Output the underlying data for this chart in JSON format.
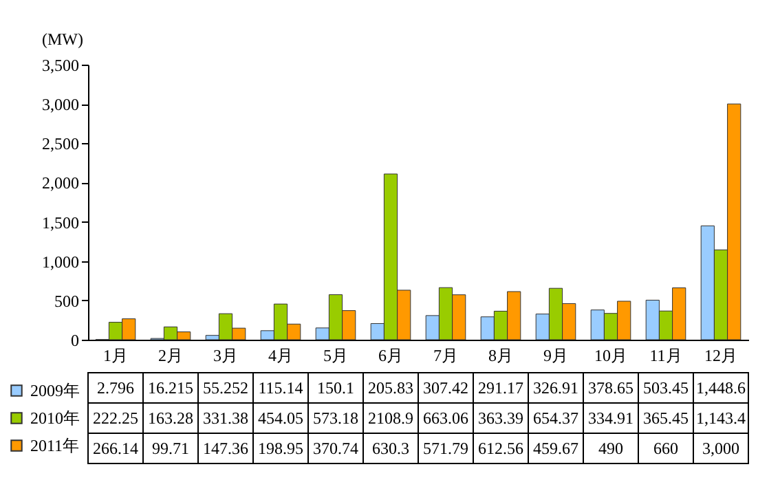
{
  "chart_data": {
    "type": "bar",
    "ylabel": "(MW)",
    "categories": [
      "1月",
      "2月",
      "3月",
      "4月",
      "5月",
      "6月",
      "7月",
      "8月",
      "9月",
      "10月",
      "11月",
      "12月"
    ],
    "series": [
      {
        "name": "2009年",
        "color": "#99ccff",
        "values": [
          2.796,
          16.215,
          55.252,
          115.14,
          150.1,
          205.83,
          307.42,
          291.17,
          326.91,
          378.65,
          503.45,
          1448.6
        ],
        "value_labels": [
          "2.796",
          "16.215",
          "55.252",
          "115.14",
          "150.1",
          "205.83",
          "307.42",
          "291.17",
          "326.91",
          "378.65",
          "503.45",
          "1,448.6"
        ]
      },
      {
        "name": "2010年",
        "color": "#99cc00",
        "values": [
          222.25,
          163.28,
          331.38,
          454.05,
          573.18,
          2108.9,
          663.06,
          363.39,
          654.37,
          334.91,
          365.45,
          1143.4
        ],
        "value_labels": [
          "222.25",
          "163.28",
          "331.38",
          "454.05",
          "573.18",
          "2108.9",
          "663.06",
          "363.39",
          "654.37",
          "334.91",
          "365.45",
          "1,143.4"
        ]
      },
      {
        "name": "2011年",
        "color": "#ff9900",
        "values": [
          266.14,
          99.71,
          147.36,
          198.95,
          370.74,
          630.3,
          571.79,
          612.56,
          459.67,
          490,
          660,
          3000
        ],
        "value_labels": [
          "266.14",
          "99.71",
          "147.36",
          "198.95",
          "370.74",
          "630.3",
          "571.79",
          "612.56",
          "459.67",
          "490",
          "660",
          "3,000"
        ]
      }
    ],
    "ylim": [
      0,
      3500
    ],
    "yticks": [
      {
        "value": 0,
        "label": "0"
      },
      {
        "value": 500,
        "label": "500"
      },
      {
        "value": 1000,
        "label": "1,000"
      },
      {
        "value": 1500,
        "label": "1,500"
      },
      {
        "value": 2000,
        "label": "2,000"
      },
      {
        "value": 2500,
        "label": "2,500"
      },
      {
        "value": 3000,
        "label": "3,000"
      },
      {
        "value": 3500,
        "label": "3,500"
      }
    ],
    "legend": "bottom left",
    "grid": false
  }
}
